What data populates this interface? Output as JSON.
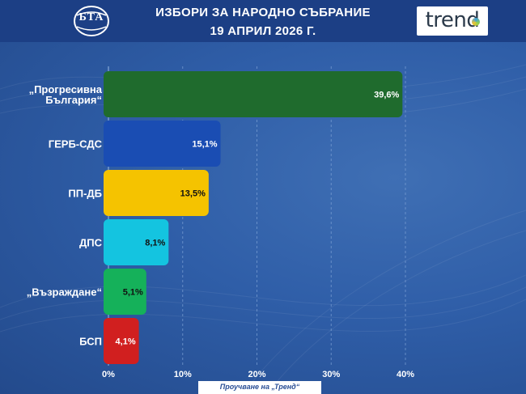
{
  "header": {
    "title_line1": "ИЗБОРИ ЗА НАРОДНО СЪБРАНИЕ",
    "title_line2": "19 АПРИЛ 2026 Г.",
    "bta_logo_text": "БТА",
    "trend_logo_text": "trend"
  },
  "footer": {
    "source": "Проучване на „Тренд“"
  },
  "chart_data": {
    "type": "bar",
    "orientation": "horizontal",
    "title": "ИЗБОРИ ЗА НАРОДНО СЪБРАНИЕ 19 АПРИЛ 2026 Г.",
    "categories": [
      [
        "„Прогресивна",
        "България“"
      ],
      [
        "ГЕРБ-СДС"
      ],
      [
        "ПП-ДБ"
      ],
      [
        "ДПС"
      ],
      [
        "„Възраждане“"
      ],
      [
        "БСП"
      ]
    ],
    "values": [
      39.6,
      15.1,
      13.5,
      8.1,
      5.1,
      4.1
    ],
    "value_labels": [
      "39,6%",
      "15,1%",
      "13,5%",
      "8,1%",
      "5,1%",
      "4,1%"
    ],
    "colors": [
      "#1f6b2d",
      "#1a4db3",
      "#f5c300",
      "#14c4e0",
      "#15b15a",
      "#d11f1f"
    ],
    "label_colors": [
      "#ffffff",
      "#ffffff",
      "#111111",
      "#111111",
      "#111111",
      "#ffffff"
    ],
    "xlim": [
      0,
      40
    ],
    "x_ticks": [
      0,
      10,
      20,
      30,
      40
    ],
    "x_tick_labels": [
      "0%",
      "10%",
      "20%",
      "30%",
      "40%"
    ],
    "grid": true,
    "xlabel": "",
    "ylabel": ""
  }
}
